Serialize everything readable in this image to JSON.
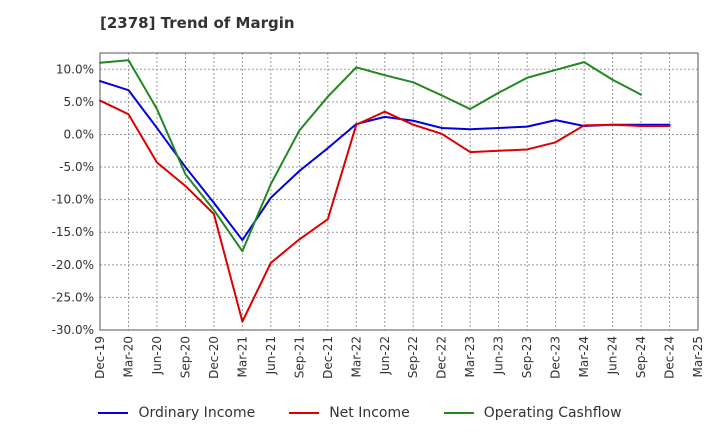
{
  "header": {
    "title": "[2378]  Trend of Margin"
  },
  "chart_data": {
    "type": "line",
    "title": "[2378]  Trend of Margin",
    "xlabel": "",
    "ylabel": "",
    "x": [
      "Dec-19",
      "Mar-20",
      "Jun-20",
      "Sep-20",
      "Dec-20",
      "Mar-21",
      "Jun-21",
      "Sep-21",
      "Dec-21",
      "Mar-22",
      "Jun-22",
      "Sep-22",
      "Dec-22",
      "Mar-23",
      "Jun-23",
      "Sep-23",
      "Dec-23",
      "Mar-24",
      "Jun-24",
      "Sep-24",
      "Dec-24",
      "Mar-25"
    ],
    "ylim": [
      -30,
      12.5
    ],
    "yticks": [
      10,
      5,
      0,
      -5,
      -10,
      -15,
      -20,
      -25,
      -30
    ],
    "ytick_labels": [
      "10.0%",
      "5.0%",
      "0.0%",
      "-5.0%",
      "-10.0%",
      "-15.0%",
      "-20.0%",
      "-25.0%",
      "-30.0%"
    ],
    "grid": true,
    "legend_position": "bottom",
    "series": [
      {
        "name": "Ordinary Income",
        "color": "#0000dd",
        "values": [
          8.2,
          6.8,
          1.0,
          -5.0,
          -10.5,
          -16.2,
          -9.7,
          -5.6,
          -2.1,
          1.6,
          2.7,
          2.1,
          1.0,
          0.8,
          1.0,
          1.2,
          2.2,
          1.3,
          1.5,
          1.5,
          1.5,
          null
        ]
      },
      {
        "name": "Net Income",
        "color": "#dd0000",
        "values": [
          5.2,
          3.1,
          -4.3,
          -7.9,
          -12.2,
          -28.7,
          -19.7,
          -16.1,
          -13.0,
          1.5,
          3.5,
          1.5,
          0.1,
          -2.7,
          -2.5,
          -2.3,
          -1.2,
          1.4,
          1.5,
          1.3,
          1.3,
          null
        ]
      },
      {
        "name": "Operating Cashflow",
        "color": "#228822",
        "values": [
          11.0,
          11.4,
          3.9,
          -6.1,
          -11.6,
          -17.9,
          -7.6,
          0.6,
          5.8,
          10.3,
          9.1,
          8.0,
          6.0,
          3.9,
          6.4,
          8.7,
          9.9,
          11.1,
          8.4,
          6.1,
          null,
          null
        ]
      }
    ]
  }
}
